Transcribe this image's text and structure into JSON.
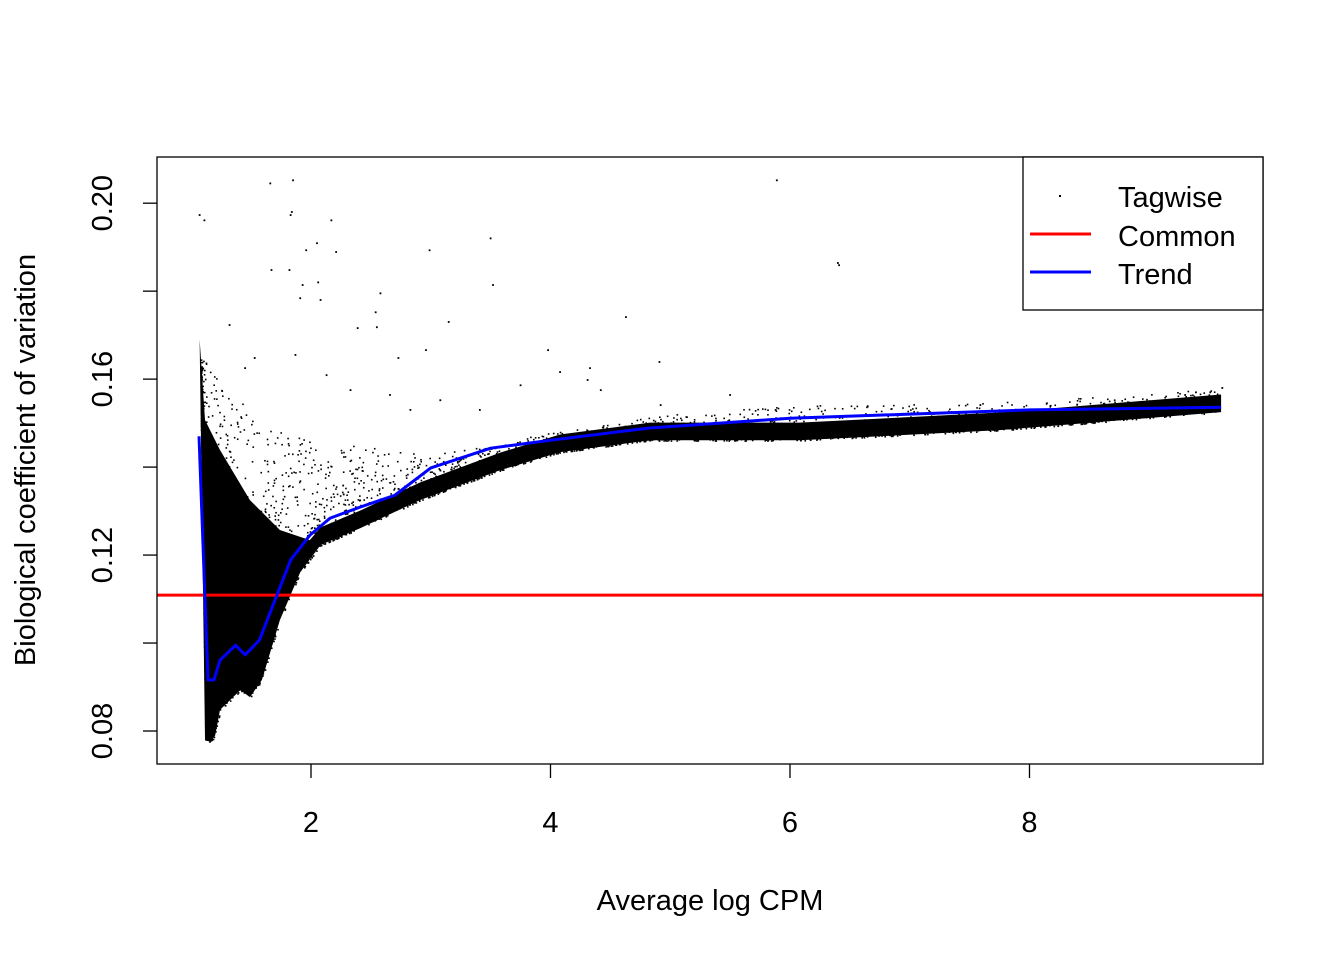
{
  "chart_data": {
    "type": "scatter",
    "title": "",
    "xlabel": "Average log CPM",
    "ylabel": "Biological coefficient of variation",
    "xlim": [
      0.714,
      9.95
    ],
    "ylim": [
      0.0725,
      0.2105
    ],
    "x_ticks": [
      2,
      4,
      6,
      8
    ],
    "x_tick_labels": [
      "2",
      "4",
      "6",
      "8"
    ],
    "y_ticks": [
      0.08,
      0.1,
      0.12,
      0.14,
      0.16,
      0.18,
      0.2
    ],
    "y_tick_labels": [
      "0.08",
      "",
      "0.12",
      "",
      "0.16",
      "",
      "0.20"
    ],
    "grid": false,
    "legend": {
      "placement": "top-right",
      "entries": [
        {
          "label": "Tagwise",
          "kind": "point",
          "color": "#000000"
        },
        {
          "label": "Common",
          "kind": "line",
          "color": "#ff0000"
        },
        {
          "label": "Trend",
          "kind": "line",
          "color": "#0000ff"
        }
      ]
    },
    "series": [
      {
        "name": "Common",
        "kind": "hline",
        "color": "#ff0000",
        "y": 0.1109
      },
      {
        "name": "Trend",
        "kind": "line",
        "color": "#0000ff",
        "x": [
          1.065,
          1.115,
          1.14,
          1.19,
          1.24,
          1.37,
          1.45,
          1.57,
          1.7,
          1.83,
          1.99,
          2.16,
          2.41,
          2.7,
          3.0,
          3.5,
          4.0,
          4.83,
          6.0,
          8.0,
          9.6
        ],
        "y": [
          0.147,
          0.1098,
          0.0916,
          0.0916,
          0.0961,
          0.0995,
          0.0973,
          0.1007,
          0.1098,
          0.1189,
          0.1245,
          0.1284,
          0.1309,
          0.1336,
          0.1398,
          0.1443,
          0.1461,
          0.1489,
          0.1511,
          0.153,
          0.1536
        ]
      },
      {
        "name": "Tagwise",
        "kind": "points",
        "color": "#000000",
        "dense_core": {
          "upper": {
            "x": [
              1.07,
              1.115,
              1.24,
              1.49,
              1.74,
              1.99
            ],
            "y": [
              0.169,
              0.1507,
              0.1439,
              0.1325,
              0.1257,
              0.1234
            ]
          },
          "lower": {
            "x": [
              1.07,
              1.115,
              1.16,
              1.2,
              1.24,
              1.41,
              1.49,
              1.59,
              1.74,
              1.91,
              2.08,
              2.41,
              2.91,
              3.58,
              4.08,
              4.83,
              6.08,
              7.75,
              9.6
            ],
            "y": [
              0.17,
              0.078,
              0.0775,
              0.079,
              0.0848,
              0.0893,
              0.0877,
              0.0916,
              0.1052,
              0.1161,
              0.1223,
              0.1261,
              0.1325,
              0.1393,
              0.1434,
              0.1461,
              0.1461,
              0.1484,
              0.1525
            ]
          }
        },
        "sparse_upper": {
          "x": [
            1.1,
            1.3,
            1.6,
            2.0,
            2.5,
            3.0,
            3.5,
            4.0,
            5.0,
            6.0,
            8.0,
            9.6
          ],
          "y": [
            0.165,
            0.158,
            0.15,
            0.146,
            0.145,
            0.143,
            0.145,
            0.148,
            0.152,
            0.154,
            0.155,
            0.158
          ]
        },
        "x": [
          1.07,
          1.11,
          1.66,
          1.85,
          1.83,
          1.84,
          2.17,
          1.67,
          1.82,
          1.96,
          2.05,
          2.21,
          2.99,
          3.5,
          3.52,
          5.89,
          6.4,
          6.41,
          2.58,
          3.15,
          2.54,
          2.55,
          4.63,
          3.98,
          4.91,
          4.33,
          4.08,
          4.31,
          2.73,
          2.96,
          2.39,
          1.91,
          2.08,
          2.06,
          1.93,
          1.32,
          1.45,
          1.53,
          1.87,
          2.13,
          2.33,
          2.66,
          2.83,
          3.08,
          3.41,
          3.75,
          4.42,
          4.92,
          5.5,
          5.88,
          7.59,
          8.68,
          9.39,
          9.61,
          9.3,
          7.17,
          7.42,
          6.75,
          6.34,
          7.88,
          8.72,
          9.51,
          5.25,
          4.75,
          5.67,
          6.0,
          6.92
        ],
        "y": [
          0.1973,
          0.1961,
          0.2045,
          0.2052,
          0.1973,
          0.198,
          0.1961,
          0.1848,
          0.1848,
          0.1893,
          0.1909,
          0.1889,
          0.1893,
          0.192,
          0.1814,
          0.2052,
          0.1864,
          0.1859,
          0.1795,
          0.173,
          0.1752,
          0.1718,
          0.1741,
          0.1666,
          0.1639,
          0.1625,
          0.1616,
          0.1598,
          0.1648,
          0.1666,
          0.1716,
          0.1784,
          0.178,
          0.182,
          0.1814,
          0.1723,
          0.1625,
          0.1648,
          0.1655,
          0.1609,
          0.1575,
          0.1564,
          0.153,
          0.1552,
          0.153,
          0.1586,
          0.1575,
          0.1541,
          0.1564,
          0.153,
          0.1541,
          0.1541,
          0.157,
          0.158,
          0.1564,
          0.1525,
          0.1507,
          0.1484,
          0.1468,
          0.15,
          0.1536,
          0.157,
          0.1484,
          0.1461,
          0.1473,
          0.1468,
          0.1473
        ]
      }
    ]
  }
}
